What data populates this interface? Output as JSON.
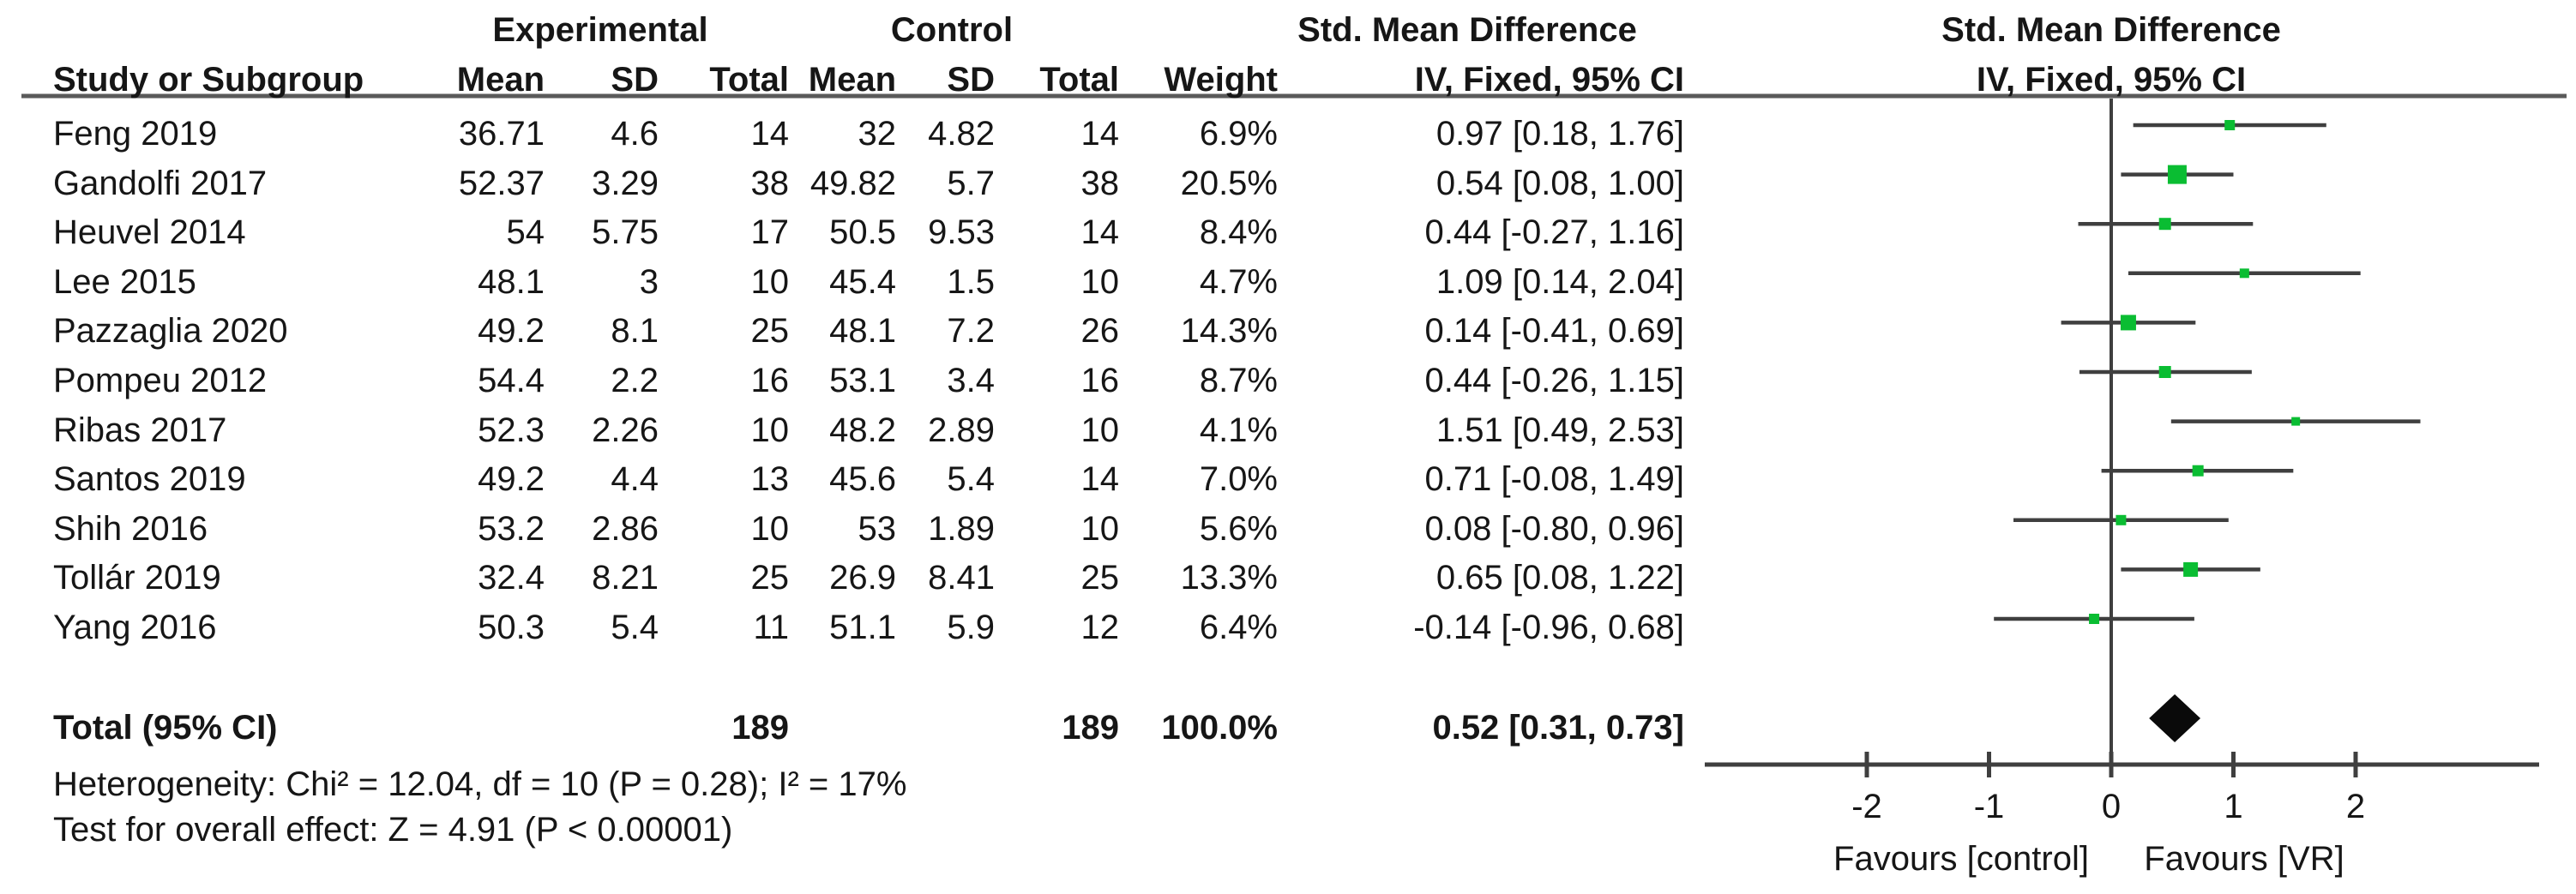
{
  "header": {
    "group_experimental": "Experimental",
    "group_control": "Control",
    "smd_text_col": "Std. Mean Difference",
    "smd_plot_col": "Std. Mean Difference",
    "col_study": "Study or Subgroup",
    "col_mean_exp": "Mean",
    "col_sd_exp": "SD",
    "col_total_exp": "Total",
    "col_mean_ctrl": "Mean",
    "col_sd_ctrl": "SD",
    "col_total_ctrl": "Total",
    "col_weight": "Weight",
    "ci_text_col": "IV, Fixed, 95% CI",
    "ci_plot_col": "IV, Fixed, 95% CI"
  },
  "totals": {
    "label": "Total (95% CI)",
    "exp_total": "189",
    "ctrl_total": "189",
    "weight_text": "100.0%",
    "smd_ci_text": "0.52 [0.31, 0.73]",
    "smd": 0.52,
    "ci_low": 0.31,
    "ci_high": 0.73
  },
  "footnotes": {
    "heterogeneity": "Heterogeneity: Chi² = 12.04, df = 10 (P = 0.28); I² = 17%",
    "overall_effect": "Test for overall effect: Z = 4.91 (P < 0.00001)"
  },
  "axis": {
    "ticks": [
      "-2",
      "-1",
      "0",
      "1",
      "2"
    ],
    "tick_values": [
      -2,
      -1,
      0,
      1,
      2
    ],
    "favours_left": "Favours [control]",
    "favours_right": "Favours [VR]"
  },
  "colors": {
    "marker_green": "#0abd32",
    "line_gray": "#3f3f3f",
    "rule_gray": "#5a5a5a",
    "diamond_black": "#0a0a0a"
  },
  "chart_data": {
    "type": "scatter",
    "title": "Std. Mean Difference, IV, Fixed, 95% CI (forest plot)",
    "xlabel": "Std. Mean Difference",
    "xlim": [
      -3.3,
      3.5
    ],
    "x_ticks": [
      -2,
      -1,
      0,
      1,
      2
    ],
    "legend_position": "none",
    "grid": false,
    "studies": [
      {
        "name": "Feng 2019",
        "exp_mean": "36.71",
        "exp_sd": "4.6",
        "exp_total": "14",
        "ctrl_mean": "32",
        "ctrl_sd": "4.82",
        "ctrl_total": "14",
        "weight_text": "6.9%",
        "weight": 6.9,
        "smd": 0.97,
        "ci_low": 0.18,
        "ci_high": 1.76,
        "smd_ci_text": "0.97 [0.18, 1.76]"
      },
      {
        "name": "Gandolfi 2017",
        "exp_mean": "52.37",
        "exp_sd": "3.29",
        "exp_total": "38",
        "ctrl_mean": "49.82",
        "ctrl_sd": "5.7",
        "ctrl_total": "38",
        "weight_text": "20.5%",
        "weight": 20.5,
        "smd": 0.54,
        "ci_low": 0.08,
        "ci_high": 1.0,
        "smd_ci_text": "0.54 [0.08, 1.00]"
      },
      {
        "name": "Heuvel 2014",
        "exp_mean": "54",
        "exp_sd": "5.75",
        "exp_total": "17",
        "ctrl_mean": "50.5",
        "ctrl_sd": "9.53",
        "ctrl_total": "14",
        "weight_text": "8.4%",
        "weight": 8.4,
        "smd": 0.44,
        "ci_low": -0.27,
        "ci_high": 1.16,
        "smd_ci_text": "0.44 [-0.27, 1.16]"
      },
      {
        "name": "Lee 2015",
        "exp_mean": "48.1",
        "exp_sd": "3",
        "exp_total": "10",
        "ctrl_mean": "45.4",
        "ctrl_sd": "1.5",
        "ctrl_total": "10",
        "weight_text": "4.7%",
        "weight": 4.7,
        "smd": 1.09,
        "ci_low": 0.14,
        "ci_high": 2.04,
        "smd_ci_text": "1.09 [0.14, 2.04]"
      },
      {
        "name": "Pazzaglia 2020",
        "exp_mean": "49.2",
        "exp_sd": "8.1",
        "exp_total": "25",
        "ctrl_mean": "48.1",
        "ctrl_sd": "7.2",
        "ctrl_total": "26",
        "weight_text": "14.3%",
        "weight": 14.3,
        "smd": 0.14,
        "ci_low": -0.41,
        "ci_high": 0.69,
        "smd_ci_text": "0.14 [-0.41, 0.69]"
      },
      {
        "name": "Pompeu 2012",
        "exp_mean": "54.4",
        "exp_sd": "2.2",
        "exp_total": "16",
        "ctrl_mean": "53.1",
        "ctrl_sd": "3.4",
        "ctrl_total": "16",
        "weight_text": "8.7%",
        "weight": 8.7,
        "smd": 0.44,
        "ci_low": -0.26,
        "ci_high": 1.15,
        "smd_ci_text": "0.44 [-0.26, 1.15]"
      },
      {
        "name": "Ribas 2017",
        "exp_mean": "52.3",
        "exp_sd": "2.26",
        "exp_total": "10",
        "ctrl_mean": "48.2",
        "ctrl_sd": "2.89",
        "ctrl_total": "10",
        "weight_text": "4.1%",
        "weight": 4.1,
        "smd": 1.51,
        "ci_low": 0.49,
        "ci_high": 2.53,
        "smd_ci_text": "1.51 [0.49, 2.53]"
      },
      {
        "name": "Santos 2019",
        "exp_mean": "49.2",
        "exp_sd": "4.4",
        "exp_total": "13",
        "ctrl_mean": "45.6",
        "ctrl_sd": "5.4",
        "ctrl_total": "14",
        "weight_text": "7.0%",
        "weight": 7.0,
        "smd": 0.71,
        "ci_low": -0.08,
        "ci_high": 1.49,
        "smd_ci_text": "0.71 [-0.08, 1.49]"
      },
      {
        "name": "Shih 2016",
        "exp_mean": "53.2",
        "exp_sd": "2.86",
        "exp_total": "10",
        "ctrl_mean": "53",
        "ctrl_sd": "1.89",
        "ctrl_total": "10",
        "weight_text": "5.6%",
        "weight": 5.6,
        "smd": 0.08,
        "ci_low": -0.8,
        "ci_high": 0.96,
        "smd_ci_text": "0.08 [-0.80, 0.96]"
      },
      {
        "name": "Tollár 2019",
        "exp_mean": "32.4",
        "exp_sd": "8.21",
        "exp_total": "25",
        "ctrl_mean": "26.9",
        "ctrl_sd": "8.41",
        "ctrl_total": "25",
        "weight_text": "13.3%",
        "weight": 13.3,
        "smd": 0.65,
        "ci_low": 0.08,
        "ci_high": 1.22,
        "smd_ci_text": "0.65 [0.08, 1.22]"
      },
      {
        "name": "Yang 2016",
        "exp_mean": "50.3",
        "exp_sd": "5.4",
        "exp_total": "11",
        "ctrl_mean": "51.1",
        "ctrl_sd": "5.9",
        "ctrl_total": "12",
        "weight_text": "6.4%",
        "weight": 6.4,
        "smd": -0.14,
        "ci_low": -0.96,
        "ci_high": 0.68,
        "smd_ci_text": "-0.14 [-0.96, 0.68]"
      }
    ],
    "total": {
      "smd": 0.52,
      "ci_low": 0.31,
      "ci_high": 0.73
    }
  }
}
